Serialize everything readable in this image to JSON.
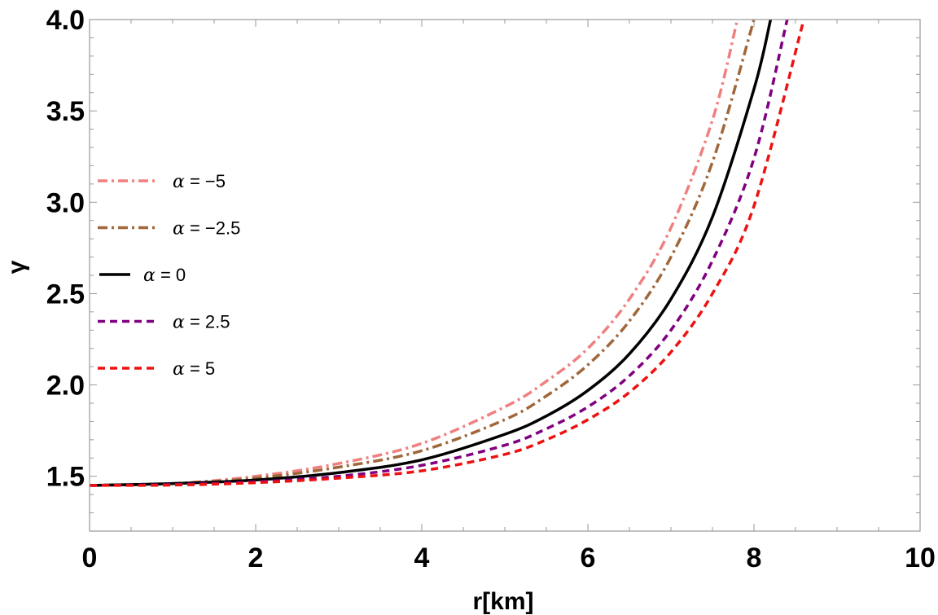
{
  "chart_data": {
    "type": "line",
    "title": "",
    "xlabel": "r[km]",
    "ylabel": "γ",
    "xlim": [
      0,
      10
    ],
    "ylim": [
      1.2,
      4.0
    ],
    "x_ticks": [
      "0",
      "2",
      "4",
      "6",
      "8",
      "10"
    ],
    "y_ticks": [
      "1.5",
      "2.0",
      "2.5",
      "3.0",
      "3.5",
      "4.0"
    ],
    "grid": false,
    "legend_position": "left",
    "series": [
      {
        "name": "α = −5",
        "symbol": "α",
        "value_label": " = −5",
        "color": "#f08080",
        "dash": "dashdot",
        "x": [
          0,
          1,
          2,
          3,
          4,
          5,
          5.5,
          6,
          6.5,
          7,
          7.5,
          7.8
        ],
        "y": [
          1.45,
          1.46,
          1.5,
          1.57,
          1.68,
          1.88,
          2.02,
          2.2,
          2.47,
          2.86,
          3.45,
          4.0
        ]
      },
      {
        "name": "α = −2.5",
        "symbol": "α",
        "value_label": " = −2.5",
        "color": "#a0673a",
        "dash": "dashdot",
        "x": [
          0,
          1,
          2,
          3,
          4,
          5,
          5.5,
          6,
          6.5,
          7,
          7.5,
          8.0
        ],
        "y": [
          1.45,
          1.46,
          1.49,
          1.55,
          1.64,
          1.81,
          1.94,
          2.11,
          2.35,
          2.7,
          3.22,
          4.0
        ]
      },
      {
        "name": "α = 0",
        "symbol": "α",
        "value_label": " = 0",
        "color": "#000000",
        "dash": "solid",
        "x": [
          0,
          1,
          2,
          3,
          4,
          5,
          5.5,
          6,
          6.5,
          7,
          7.5,
          8.0,
          8.2
        ],
        "y": [
          1.45,
          1.46,
          1.48,
          1.52,
          1.59,
          1.73,
          1.83,
          1.97,
          2.17,
          2.47,
          2.92,
          3.62,
          4.0
        ]
      },
      {
        "name": "α = 2.5",
        "symbol": "α",
        "value_label": " = 2.5",
        "color": "#800080",
        "dash": "dashed",
        "x": [
          0,
          1,
          2,
          3,
          4,
          5,
          5.5,
          6,
          6.5,
          7,
          7.5,
          8.0,
          8.4
        ],
        "y": [
          1.45,
          1.455,
          1.47,
          1.5,
          1.56,
          1.67,
          1.76,
          1.88,
          2.05,
          2.3,
          2.68,
          3.24,
          4.0
        ]
      },
      {
        "name": "α = 5",
        "symbol": "α",
        "value_label": " = 5",
        "color": "#ee1111",
        "dash": "dashed",
        "x": [
          0,
          1,
          2,
          3,
          4,
          5,
          5.5,
          6,
          6.5,
          7,
          7.5,
          8.0,
          8.6
        ],
        "y": [
          1.45,
          1.452,
          1.465,
          1.49,
          1.53,
          1.62,
          1.7,
          1.81,
          1.96,
          2.18,
          2.5,
          2.98,
          4.0
        ]
      }
    ]
  }
}
